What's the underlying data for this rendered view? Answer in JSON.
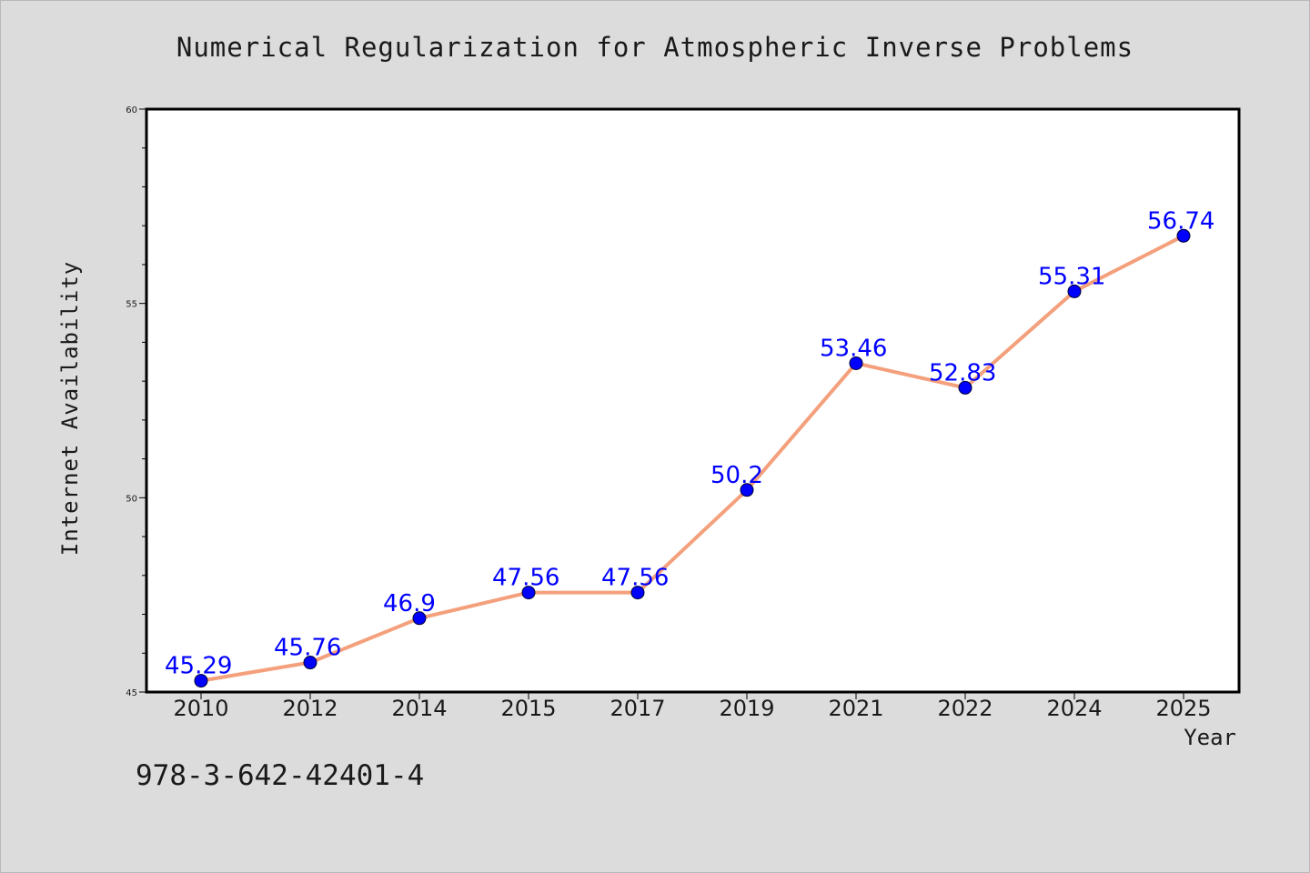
{
  "chart_data": {
    "type": "line",
    "title": "Numerical Regularization for Atmospheric Inverse Problems",
    "xlabel": "Year",
    "ylabel": "Internet Availability",
    "categories": [
      "2010",
      "2012",
      "2014",
      "2015",
      "2017",
      "2019",
      "2021",
      "2022",
      "2024",
      "2025"
    ],
    "series": [
      {
        "values": [
          45.29,
          45.76,
          46.9,
          47.56,
          47.56,
          50.2,
          53.46,
          52.83,
          55.31,
          56.74
        ],
        "line_color": "#f4a07c",
        "marker_color": "#0000ff"
      }
    ],
    "data_labels": [
      "45.29",
      "45.76",
      "46.9",
      "47.56",
      "47.56",
      "50.2",
      "53.46",
      "52.83",
      "55.31",
      "56.74"
    ],
    "ylim": [
      45,
      60
    ],
    "yticks": [
      "45",
      "50",
      "55",
      "60"
    ],
    "grid": false,
    "legend": "none"
  },
  "annotation": {
    "isbn": "978-3-642-42401-4"
  },
  "colors": {
    "background": "#dcdcdc",
    "plot_background": "#ffffff",
    "line": "#f4a07c",
    "marker": "#0000ff",
    "data_label": "#0000ff"
  }
}
